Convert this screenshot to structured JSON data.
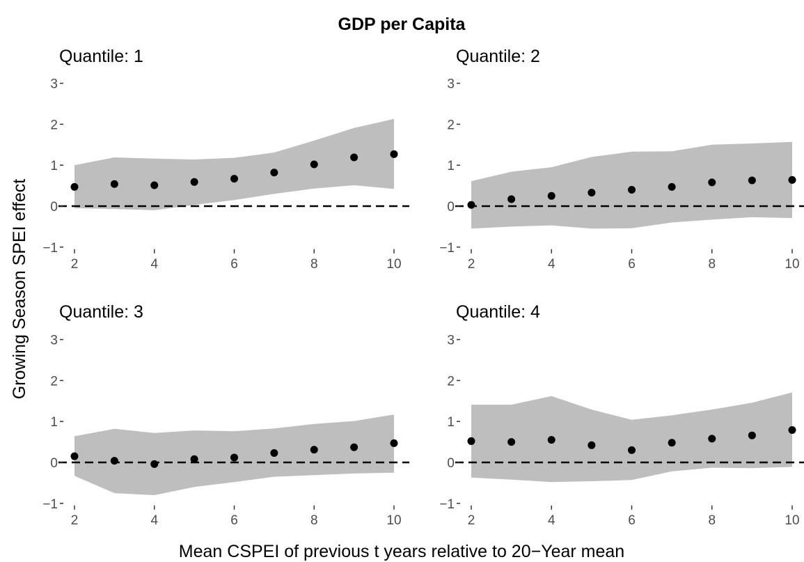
{
  "title": "GDP per Capita",
  "xlabel": "Mean CSPEI of previous t years relative to 20−Year mean",
  "ylabel": "Growing Season SPEI effect",
  "chart_data": [
    {
      "type": "scatter",
      "panel_title": "Quantile: 1",
      "x": [
        2,
        3,
        4,
        5,
        6,
        7,
        8,
        9,
        10
      ],
      "y": [
        0.47,
        0.54,
        0.51,
        0.59,
        0.67,
        0.82,
        1.02,
        1.19,
        1.27
      ],
      "ci_lower": [
        -0.05,
        -0.07,
        -0.1,
        0.03,
        0.15,
        0.3,
        0.43,
        0.51,
        0.42
      ],
      "ci_upper": [
        1.0,
        1.19,
        1.16,
        1.14,
        1.18,
        1.31,
        1.6,
        1.91,
        2.13
      ],
      "xlim": [
        2,
        10
      ],
      "ylim": [
        -1,
        3
      ],
      "xticks": [
        2,
        4,
        6,
        8,
        10
      ],
      "yticks": [
        -1,
        0,
        1,
        2,
        3
      ],
      "reference_line": 0
    },
    {
      "type": "scatter",
      "panel_title": "Quantile: 2",
      "x": [
        2,
        3,
        4,
        5,
        6,
        7,
        8,
        9,
        10
      ],
      "y": [
        0.03,
        0.17,
        0.25,
        0.33,
        0.4,
        0.47,
        0.58,
        0.63,
        0.64
      ],
      "ci_lower": [
        -0.55,
        -0.5,
        -0.47,
        -0.55,
        -0.54,
        -0.4,
        -0.33,
        -0.27,
        -0.29
      ],
      "ci_upper": [
        0.61,
        0.84,
        0.95,
        1.2,
        1.33,
        1.34,
        1.5,
        1.53,
        1.57
      ],
      "xlim": [
        2,
        10
      ],
      "ylim": [
        -1,
        3
      ],
      "xticks": [
        2,
        4,
        6,
        8,
        10
      ],
      "yticks": [
        -1,
        0,
        1,
        2,
        3
      ],
      "reference_line": 0
    },
    {
      "type": "scatter",
      "panel_title": "Quantile: 3",
      "x": [
        2,
        3,
        4,
        5,
        6,
        7,
        8,
        9,
        10
      ],
      "y": [
        0.15,
        0.04,
        -0.04,
        0.08,
        0.12,
        0.23,
        0.31,
        0.37,
        0.47
      ],
      "ci_lower": [
        -0.33,
        -0.75,
        -0.8,
        -0.6,
        -0.48,
        -0.35,
        -0.31,
        -0.27,
        -0.25
      ],
      "ci_upper": [
        0.64,
        0.82,
        0.72,
        0.78,
        0.76,
        0.83,
        0.94,
        1.01,
        1.17
      ],
      "xlim": [
        2,
        10
      ],
      "ylim": [
        -1,
        3
      ],
      "xticks": [
        2,
        4,
        6,
        8,
        10
      ],
      "yticks": [
        -1,
        0,
        1,
        2,
        3
      ],
      "reference_line": 0
    },
    {
      "type": "scatter",
      "panel_title": "Quantile: 4",
      "x": [
        2,
        3,
        4,
        5,
        6,
        7,
        8,
        9,
        10
      ],
      "y": [
        0.52,
        0.5,
        0.55,
        0.42,
        0.3,
        0.48,
        0.58,
        0.66,
        0.79
      ],
      "ci_lower": [
        -0.37,
        -0.42,
        -0.48,
        -0.46,
        -0.43,
        -0.22,
        -0.13,
        -0.14,
        -0.11
      ],
      "ci_upper": [
        1.41,
        1.41,
        1.62,
        1.29,
        1.04,
        1.15,
        1.29,
        1.46,
        1.71
      ],
      "xlim": [
        2,
        10
      ],
      "ylim": [
        -1,
        3
      ],
      "xticks": [
        2,
        4,
        6,
        8,
        10
      ],
      "yticks": [
        -1,
        0,
        1,
        2,
        3
      ],
      "reference_line": 0
    }
  ],
  "colors": {
    "ribbon": "#bebebe",
    "point": "#000000",
    "text": "#000000",
    "tick_label": "#4d4d4d"
  }
}
